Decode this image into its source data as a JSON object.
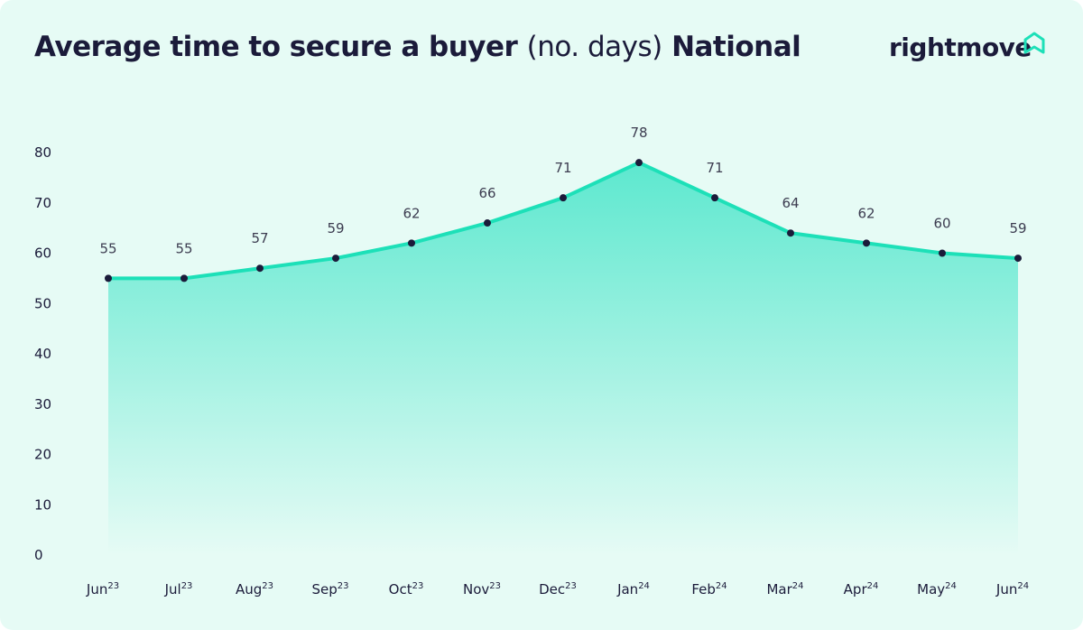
{
  "title": {
    "bold": "Average time to secure a buyer",
    "light": "(no. days)",
    "region": "National"
  },
  "logo": {
    "text": "rightmove",
    "icon": "house-outline-icon"
  },
  "colors": {
    "line": "#1de0b8",
    "fill_top": "#5de8cf",
    "fill_bottom": "#e6fbf5",
    "point": "#1b1b3a",
    "background": "#e6fbf5"
  },
  "chart_data": {
    "type": "area",
    "title": "Average time to secure a buyer (no. days) National",
    "categories": [
      {
        "month": "Jun",
        "year": "23"
      },
      {
        "month": "Jul",
        "year": "23"
      },
      {
        "month": "Aug",
        "year": "23"
      },
      {
        "month": "Sep",
        "year": "23"
      },
      {
        "month": "Oct",
        "year": "23"
      },
      {
        "month": "Nov",
        "year": "23"
      },
      {
        "month": "Dec",
        "year": "23"
      },
      {
        "month": "Jan",
        "year": "24"
      },
      {
        "month": "Feb",
        "year": "24"
      },
      {
        "month": "Mar",
        "year": "24"
      },
      {
        "month": "Apr",
        "year": "24"
      },
      {
        "month": "May",
        "year": "24"
      },
      {
        "month": "Jun",
        "year": "24"
      }
    ],
    "values": [
      55,
      55,
      57,
      59,
      62,
      66,
      71,
      78,
      71,
      64,
      62,
      60,
      59
    ],
    "ylim": [
      0,
      80
    ],
    "yticks": [
      0,
      10,
      20,
      30,
      40,
      50,
      60,
      70,
      80
    ],
    "grid": false,
    "data_labels": true
  }
}
